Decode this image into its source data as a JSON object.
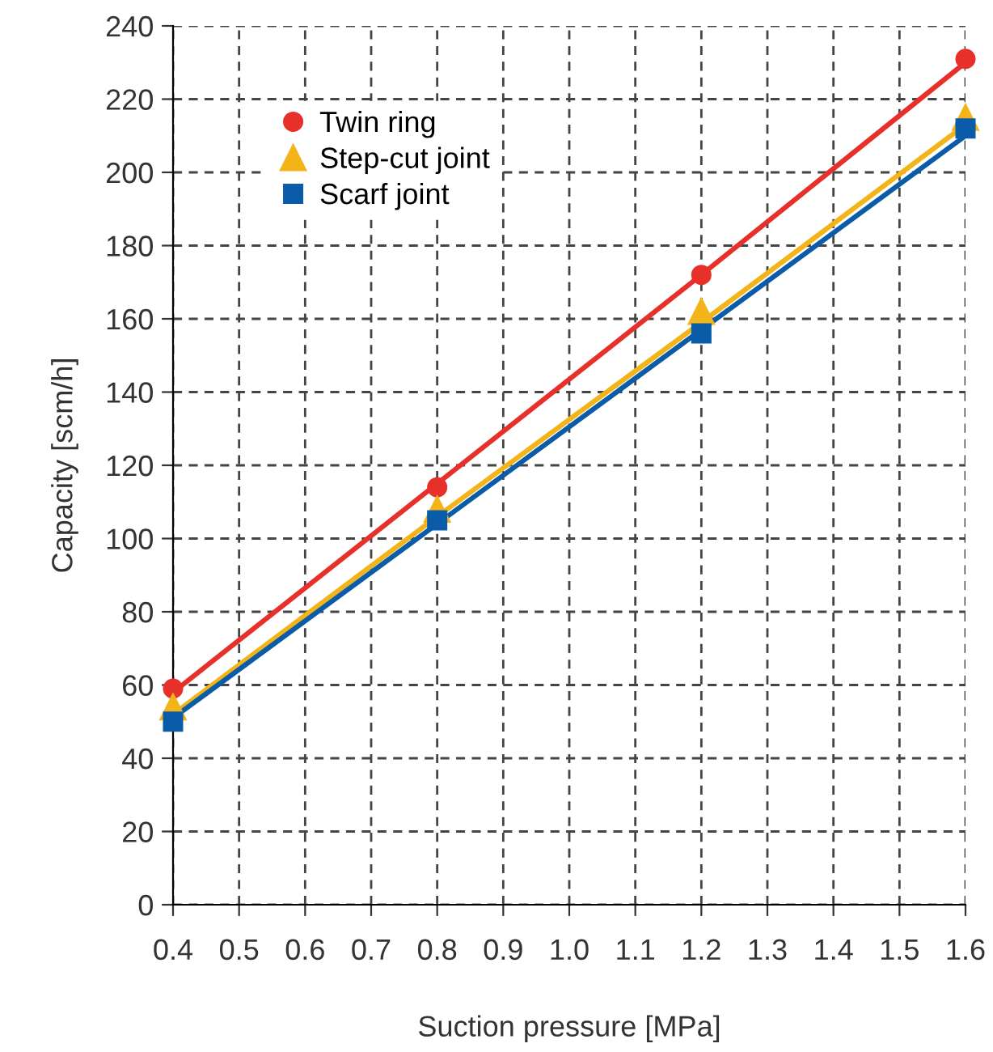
{
  "chart_data": {
    "type": "scatter",
    "xlabel": "Suction pressure [MPa]",
    "ylabel": "Capacity [scm/h]",
    "x": [
      0.4,
      0.8,
      1.2,
      1.6
    ],
    "series": [
      {
        "type": "line",
        "color": "#e8302a",
        "values": [
          58,
          115,
          172,
          230
        ],
        "marker": "none"
      },
      {
        "type": "line",
        "color": "#f2b419",
        "values": [
          52,
          106,
          159,
          213
        ],
        "marker": "none"
      },
      {
        "type": "line",
        "color": "#0a5ca8",
        "values": [
          51,
          104,
          157,
          210
        ],
        "marker": "none"
      },
      {
        "name": "Twin ring",
        "color": "#e8302a",
        "values": [
          59,
          114,
          172,
          231
        ],
        "marker": "circle"
      },
      {
        "name": "Step-cut joint",
        "color": "#f2b419",
        "values": [
          54,
          108,
          162,
          215
        ],
        "marker": "triangle"
      },
      {
        "name": "Scarf joint",
        "color": "#0a5ca8",
        "values": [
          50,
          105,
          156,
          212
        ],
        "marker": "square"
      }
    ],
    "xlim": [
      0.4,
      1.6
    ],
    "xticks": [
      {
        "value": 0.4,
        "label": "0.4"
      },
      {
        "value": 0.5,
        "label": "0.5"
      },
      {
        "value": 0.6,
        "label": "0.6"
      },
      {
        "value": 0.7,
        "label": "0.7"
      },
      {
        "value": 0.8,
        "label": "0.8"
      },
      {
        "value": 0.9,
        "label": "0.9"
      },
      {
        "value": 1.0,
        "label": "1.0"
      },
      {
        "value": 1.1,
        "label": "1.1"
      },
      {
        "value": 1.2,
        "label": "1.2"
      },
      {
        "value": 1.3,
        "label": "1.3"
      },
      {
        "value": 1.4,
        "label": "1.4"
      },
      {
        "value": 1.5,
        "label": "1.5"
      },
      {
        "value": 1.6,
        "label": "1.6"
      }
    ],
    "ylim": [
      0,
      240
    ],
    "yticks": [
      0,
      20,
      40,
      60,
      80,
      100,
      120,
      140,
      160,
      180,
      200,
      220,
      240
    ],
    "grid": true,
    "legend": "top left",
    "line_style": "solid"
  }
}
